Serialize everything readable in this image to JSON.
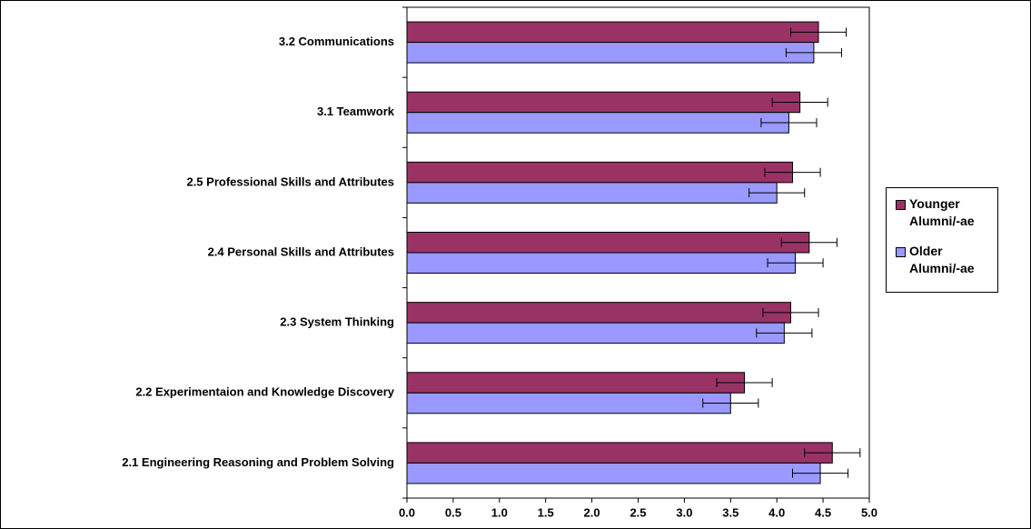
{
  "chart_data": {
    "type": "barh",
    "categories": [
      "2.1 Engineering Reasoning and Problem Solving",
      "2.2 Experimentaion and Knowledge Discovery",
      "2.3 System Thinking",
      "2.4 Personal Skills and Attributes",
      "2.5 Professional Skills and Attributes",
      "3.1 Teamwork",
      "3.2 Communications"
    ],
    "series": [
      {
        "name": "Younger Alumni/-ae",
        "color": "#993366",
        "values": [
          4.6,
          3.65,
          4.15,
          4.35,
          4.17,
          4.25,
          4.45
        ],
        "errors": [
          0.3,
          0.3,
          0.3,
          0.3,
          0.3,
          0.3,
          0.3
        ]
      },
      {
        "name": "Older Alumni/-ae",
        "color": "#9999ff",
        "values": [
          4.47,
          3.5,
          4.08,
          4.2,
          4.0,
          4.13,
          4.4
        ],
        "errors": [
          0.3,
          0.3,
          0.3,
          0.3,
          0.3,
          0.3,
          0.3
        ]
      }
    ],
    "xlim": [
      0,
      5
    ],
    "xticks": [
      {
        "value": 0,
        "label": "0.0"
      },
      0.5,
      {
        "value": 1,
        "label": "1.0"
      },
      1.5,
      {
        "value": 2,
        "label": "2.0"
      },
      2.5,
      {
        "value": 3,
        "label": "3.0"
      },
      3.5,
      {
        "value": 4,
        "label": "4.0"
      },
      4.5,
      {
        "value": 5,
        "label": "5.0"
      }
    ],
    "legend": "right"
  }
}
